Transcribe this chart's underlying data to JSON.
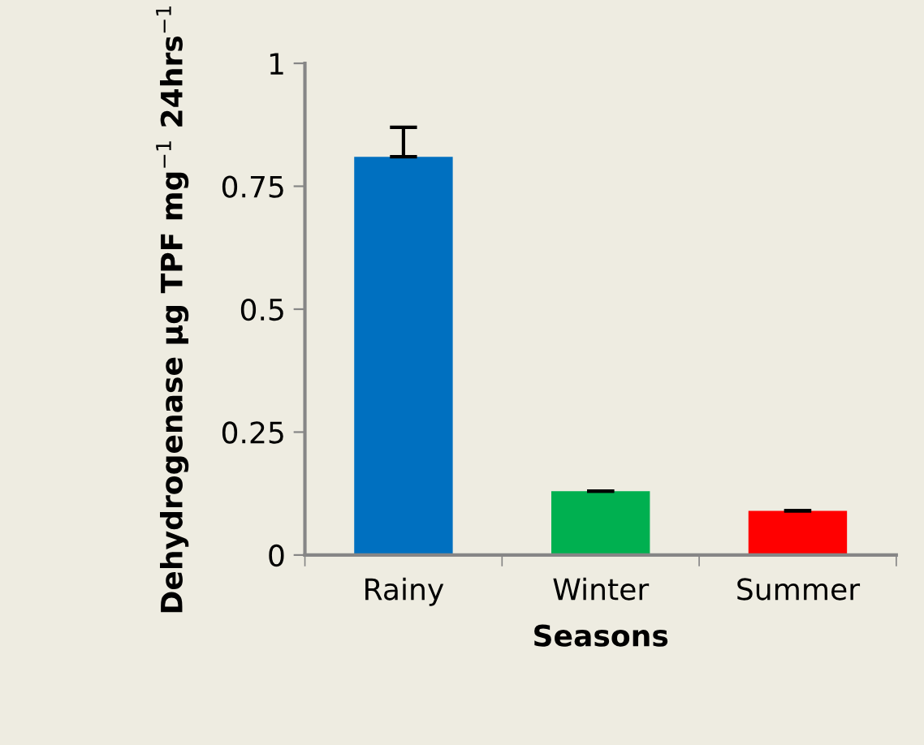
{
  "chart_data": {
    "type": "bar",
    "xlabel": "Seasons",
    "ylabel": "Dehydrogenase µg TPF mg$^{−1}$ 24hrs$^{−1}$",
    "categories": [
      "Rainy",
      "Winter",
      "Summer"
    ],
    "values": [
      0.81,
      0.13,
      0.09
    ],
    "colors": [
      "#0070c0",
      "#00b050",
      "#ff0000"
    ],
    "errors": [
      [
        0.81,
        0.87
      ],
      [
        0.13,
        0.13
      ],
      [
        0.09,
        0.09
      ]
    ],
    "ylim": [
      0,
      1
    ],
    "yticks": [
      {
        "value": 0,
        "label": "0"
      },
      0.25,
      0.5,
      0.75,
      {
        "value": 1,
        "label": "1"
      }
    ],
    "grid": false,
    "legend": false
  }
}
